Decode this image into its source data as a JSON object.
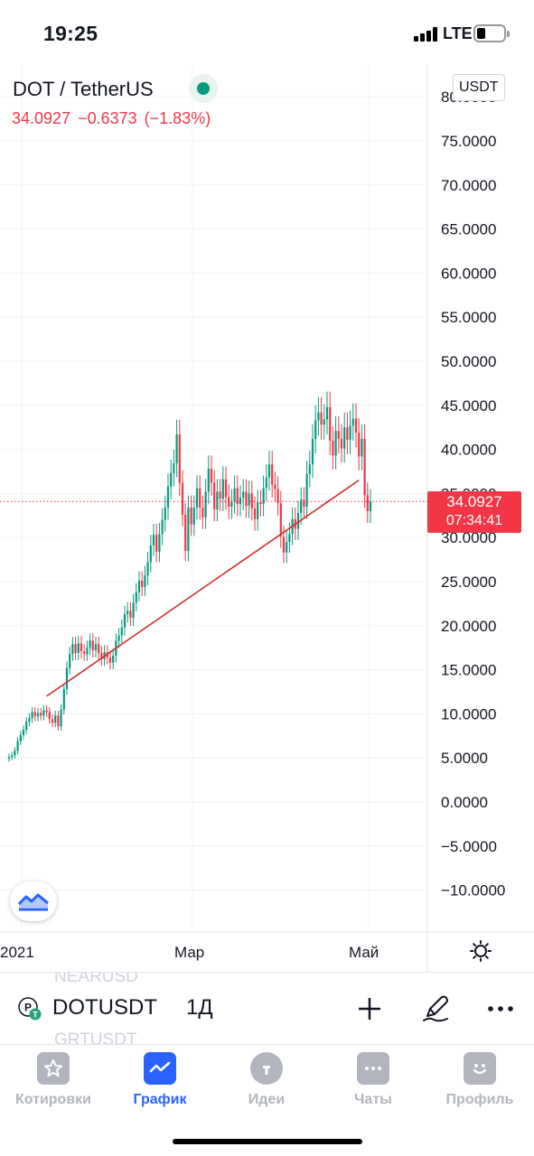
{
  "status_bar": {
    "time": "19:25",
    "network": "LTE"
  },
  "header": {
    "symbol_title": "DOT / TetherUS",
    "last_price": "34.0927",
    "change": "−0.6373",
    "change_percent": "(−1.83%)",
    "currency": "USDT"
  },
  "price_label": {
    "price": "34.0927",
    "countdown": "07:34:41"
  },
  "chart_data": {
    "type": "candlestick",
    "y_axis_labels": [
      "80.0000",
      "75.0000",
      "70.0000",
      "65.0000",
      "60.0000",
      "55.0000",
      "50.0000",
      "45.0000",
      "40.0000",
      "35.0000",
      "30.0000",
      "25.0000",
      "20.0000",
      "15.0000",
      "10.0000",
      "5.0000",
      "0.0000",
      "−5.0000",
      "−10.0000"
    ],
    "y_axis_values": [
      80,
      75,
      70,
      65,
      60,
      55,
      50,
      45,
      40,
      35,
      30,
      25,
      20,
      15,
      10,
      5,
      0,
      -5,
      -10
    ],
    "x_axis_labels": [
      {
        "label": "2021",
        "day": 0
      },
      {
        "label": "Мар",
        "day": 59
      },
      {
        "label": "Май",
        "day": 120
      }
    ],
    "last_price": 34.0927,
    "trendline": {
      "start": {
        "day": 13,
        "value": 12
      },
      "end": {
        "day": 121,
        "value": 36.5
      }
    },
    "up_color": "#089981",
    "down_color": "#f23645",
    "candles_close": [
      5.1,
      5.3,
      5.8,
      6.9,
      7.6,
      8.2,
      9.1,
      9.5,
      10.2,
      9.7,
      10.1,
      9.8,
      10.4,
      10.2,
      9.4,
      9.0,
      9.8,
      8.6,
      10.5,
      12.8,
      15.2,
      16.8,
      17.9,
      16.9,
      18.0,
      17.1,
      16.8,
      17.5,
      18.3,
      17.2,
      17.9,
      16.9,
      16.2,
      17.0,
      16.4,
      15.8,
      16.6,
      18.3,
      18.9,
      19.8,
      21.3,
      21.7,
      20.9,
      22.6,
      23.8,
      25.1,
      24.4,
      25.7,
      27.2,
      29.1,
      30.3,
      28.4,
      30.4,
      32.0,
      33.4,
      35.8,
      37.3,
      38.4,
      41.7,
      36.2,
      32.6,
      28.5,
      33.4,
      31.5,
      33.4,
      35.6,
      33.4,
      32.3,
      35.2,
      37.8,
      36.2,
      33.2,
      35.2,
      34.4,
      36.6,
      34.6,
      33.5,
      34.1,
      35.6,
      33.8,
      34.5,
      35.2,
      33.6,
      35.0,
      33.3,
      32.1,
      34.0,
      33.8,
      35.6,
      36.8,
      38.3,
      36.0,
      35.5,
      33.9,
      30.1,
      28.3,
      29.5,
      30.4,
      32.1,
      31.0,
      32.8,
      34.3,
      33.5,
      37.2,
      38.3,
      41.2,
      43.3,
      44.2,
      42.8,
      43.4,
      44.8,
      41.0,
      39.3,
      42.1,
      41.2,
      40.1,
      42.5,
      41.1,
      42.7,
      43.5,
      41.9,
      39.2,
      41.2,
      34.8,
      33.0,
      34.09
    ]
  },
  "toolbar": {
    "symbol": "DOTUSDT",
    "interval": "1Д",
    "ghost_prev": "NEARUSD",
    "ghost_next": "GRTUSDT"
  },
  "tabs": [
    {
      "label": "Котировки",
      "icon": "star-icon"
    },
    {
      "label": "График",
      "icon": "chart-icon",
      "active": true
    },
    {
      "label": "Идеи",
      "icon": "bulb-icon"
    },
    {
      "label": "Чаты",
      "icon": "chat-icon"
    },
    {
      "label": "Профиль",
      "icon": "smile-icon"
    }
  ]
}
